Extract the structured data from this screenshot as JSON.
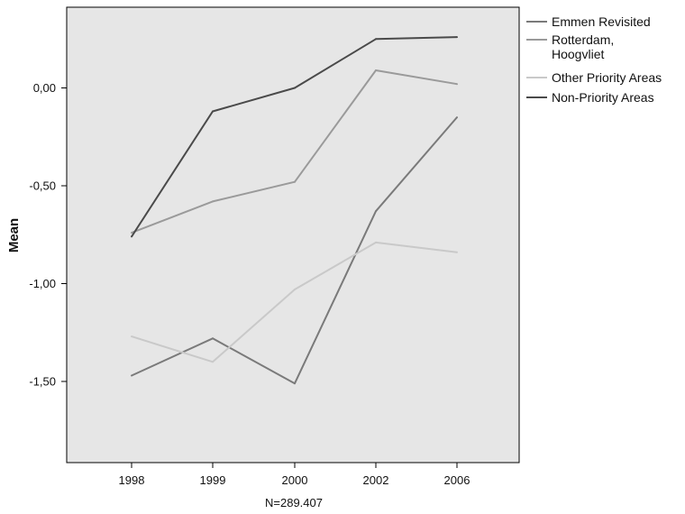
{
  "chart_data": {
    "type": "line",
    "title": "",
    "xlabel": "N=289.407",
    "ylabel": "Mean",
    "categories": [
      "1998",
      "1999",
      "2000",
      "2002",
      "2006"
    ],
    "yticks": [
      "0,00",
      "-0,50",
      "-1,00",
      "-1,50"
    ],
    "ylim": [
      -1.9,
      0.4
    ],
    "grid": false,
    "legend_position": "right",
    "plot_background": "#e6e6e6",
    "series": [
      {
        "name": "Emmen Revisited",
        "color": "#7a7a7a",
        "values": [
          -1.47,
          -1.28,
          -1.51,
          -0.63,
          -0.15
        ]
      },
      {
        "name": "Rotterdam,\nHoogvliet",
        "color": "#9a9a9a",
        "values": [
          -0.74,
          -0.58,
          -0.48,
          0.09,
          0.02
        ]
      },
      {
        "name": "Other Priority Areas",
        "color": "#c9c9c9",
        "values": [
          -1.27,
          -1.4,
          -1.03,
          -0.79,
          -0.84
        ]
      },
      {
        "name": "Non-Priority Areas",
        "color": "#4a4a4a",
        "values": [
          -0.76,
          -0.12,
          0.0,
          0.25,
          0.26
        ]
      }
    ]
  }
}
